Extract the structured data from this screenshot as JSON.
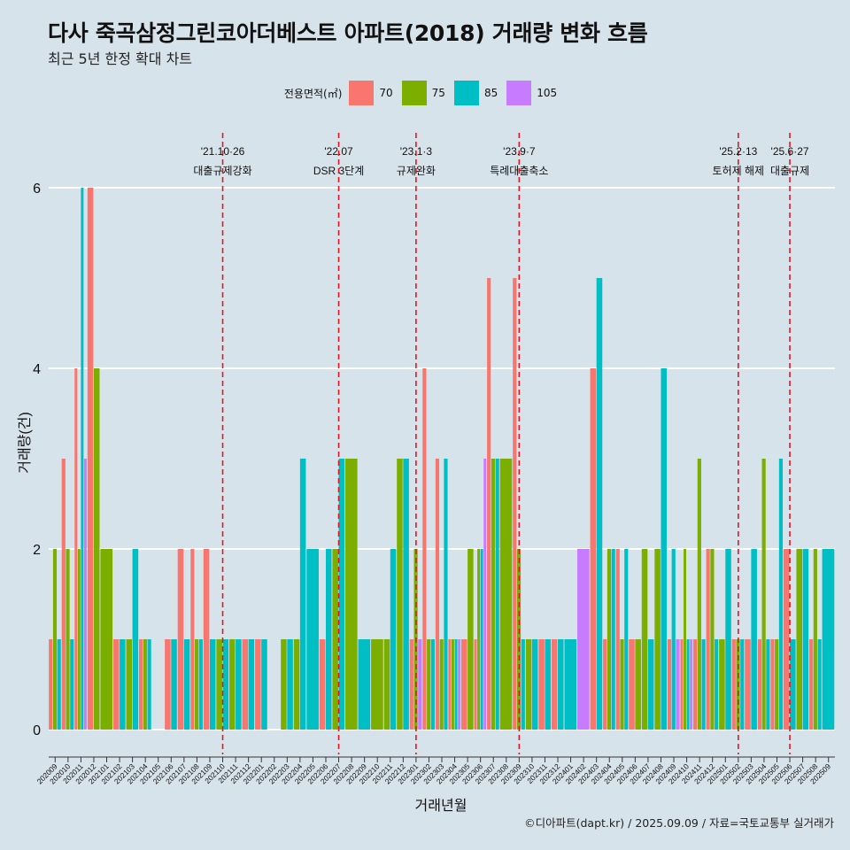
{
  "title": "다사 죽곡삼정그린코아더베스트 아파트(2018) 거래량 변화 흐름",
  "subtitle": "최근 5년 한정 확대 차트",
  "caption": "©디아파트(dapt.kr) / 2025.09.09 / 자료=국토교통부 실거래가",
  "legend": {
    "title": "전용면적(㎡)",
    "items": [
      {
        "label": "70",
        "color": "#F8766D"
      },
      {
        "label": "75",
        "color": "#7CAE00"
      },
      {
        "label": "85",
        "color": "#00BFC4"
      },
      {
        "label": "105",
        "color": "#C77CFF"
      }
    ]
  },
  "chart_data": {
    "type": "bar",
    "xlabel": "거래년월",
    "ylabel": "거래량(건)",
    "ylim": [
      0,
      6
    ],
    "yticks": [
      0,
      2,
      4,
      6
    ],
    "grid": true,
    "categories": [
      "202009",
      "202010",
      "202011",
      "202012",
      "202101",
      "202102",
      "202103",
      "202104",
      "202105",
      "202106",
      "202107",
      "202108",
      "202109",
      "202110",
      "202111",
      "202112",
      "202201",
      "202202",
      "202203",
      "202204",
      "202205",
      "202206",
      "202207",
      "202208",
      "202209",
      "202210",
      "202211",
      "202212",
      "202301",
      "202302",
      "202303",
      "202304",
      "202305",
      "202306",
      "202307",
      "202308",
      "202309",
      "202310",
      "202311",
      "202312",
      "202401",
      "202402",
      "202403",
      "202404",
      "202405",
      "202406",
      "202407",
      "202408",
      "202409",
      "202410",
      "202411",
      "202412",
      "202501",
      "202502",
      "202503",
      "202504",
      "202505",
      "202506",
      "202507",
      "202508",
      "202509"
    ],
    "series": [
      {
        "name": "70",
        "color": "#F8766D",
        "values": [
          1,
          3,
          4,
          6,
          0,
          1,
          0,
          1,
          0,
          1,
          2,
          2,
          2,
          0,
          0,
          1,
          1,
          0,
          0,
          0,
          0,
          1,
          0,
          0,
          0,
          0,
          0,
          0,
          1,
          4,
          3,
          1,
          1,
          1,
          5,
          0,
          5,
          0,
          1,
          1,
          0,
          0,
          4,
          1,
          2,
          1,
          0,
          0,
          1,
          1,
          1,
          2,
          0,
          1,
          1,
          1,
          1,
          2,
          0,
          1,
          0
        ]
      },
      {
        "name": "75",
        "color": "#7CAE00",
        "values": [
          2,
          2,
          2,
          4,
          2,
          0,
          1,
          1,
          0,
          0,
          0,
          1,
          0,
          1,
          1,
          0,
          0,
          0,
          1,
          1,
          0,
          0,
          2,
          3,
          0,
          1,
          1,
          3,
          2,
          1,
          1,
          1,
          2,
          2,
          3,
          3,
          2,
          1,
          0,
          0,
          0,
          0,
          0,
          2,
          1,
          1,
          2,
          2,
          0,
          2,
          3,
          2,
          1,
          1,
          0,
          3,
          1,
          0,
          2,
          2,
          0
        ]
      },
      {
        "name": "85",
        "color": "#00BFC4",
        "values": [
          1,
          1,
          6,
          0,
          0,
          1,
          2,
          1,
          0,
          1,
          1,
          1,
          1,
          1,
          1,
          1,
          1,
          0,
          1,
          3,
          2,
          2,
          3,
          0,
          1,
          0,
          2,
          3,
          0,
          1,
          3,
          1,
          0,
          2,
          3,
          0,
          1,
          1,
          1,
          1,
          1,
          0,
          5,
          2,
          2,
          0,
          1,
          4,
          2,
          1,
          1,
          1,
          2,
          1,
          2,
          1,
          3,
          1,
          2,
          1,
          2
        ]
      },
      {
        "name": "105",
        "color": "#C77CFF",
        "values": [
          0,
          0,
          3,
          0,
          0,
          0,
          0,
          0,
          0,
          0,
          0,
          0,
          0,
          0,
          0,
          0,
          0,
          0,
          0,
          0,
          0,
          0,
          0,
          0,
          0,
          0,
          0,
          0,
          1,
          0,
          0,
          1,
          0,
          3,
          0,
          0,
          0,
          0,
          0,
          0,
          0,
          2,
          0,
          0,
          0,
          0,
          0,
          0,
          1,
          1,
          0,
          0,
          0,
          0,
          0,
          0,
          0,
          0,
          0,
          0,
          0
        ]
      }
    ],
    "events": [
      {
        "month": "202110",
        "date": "'21.10·26",
        "label": "대출규제강화"
      },
      {
        "month": "202207",
        "date": "'22.07",
        "label": "DSR 3단계"
      },
      {
        "month": "202301",
        "date": "'23.1·3",
        "label": "규제완화"
      },
      {
        "month": "202309",
        "date": "'23.9·7",
        "label": "특례대출축소"
      },
      {
        "month": "202502",
        "date": "'25.2·13",
        "label": "토허제 해제"
      },
      {
        "month": "202506",
        "date": "'25.6·27",
        "label": "대출규제"
      }
    ]
  }
}
